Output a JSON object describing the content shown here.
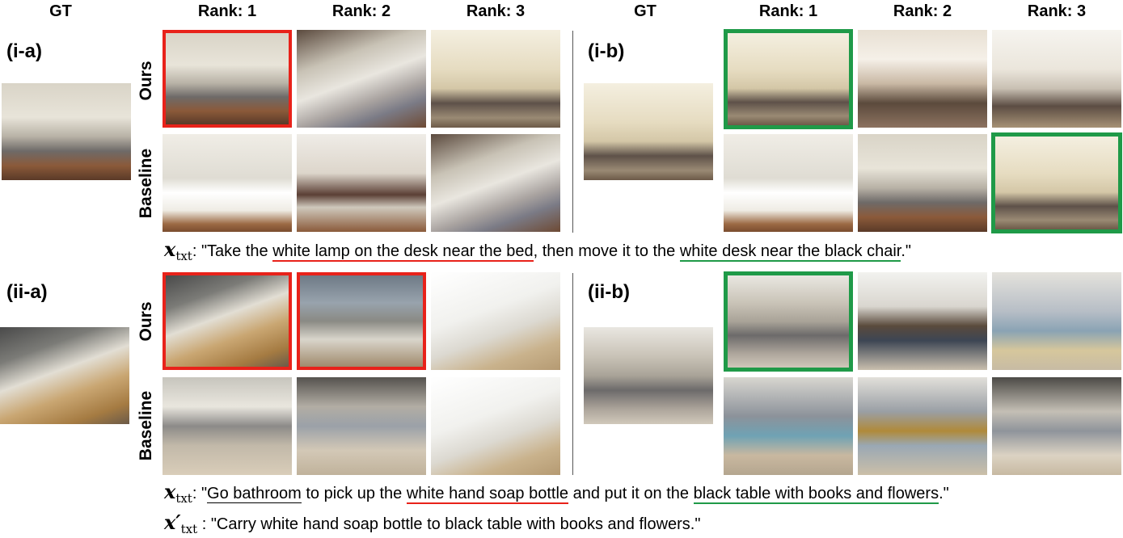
{
  "headers": {
    "gt_left": "GT",
    "rank1_left": "Rank: 1",
    "rank2_left": "Rank: 2",
    "rank3_left": "Rank: 3",
    "gt_right": "GT",
    "rank1_right": "Rank: 1",
    "rank2_right": "Rank: 2",
    "rank3_right": "Rank: 3"
  },
  "panels": {
    "ia": "(i-a)",
    "ib": "(i-b)",
    "iia": "(ii-a)",
    "iib": "(ii-b)"
  },
  "row_labels": {
    "ours": "Ours",
    "baseline": "Baseline"
  },
  "highlight_colors": {
    "wrong": "#e8221a",
    "correct": "#1f9a48"
  },
  "caption1": {
    "symbol": "x",
    "subscript": "txt",
    "prefix": ": \"Take the ",
    "red_phrase": "white lamp on the desk near the bed",
    "middle": ", then move it to the ",
    "green_phrase": "white desk near the black chair",
    "suffix": ".\""
  },
  "caption2": {
    "symbol": "x",
    "subscript": "txt",
    "prefix": ": \"",
    "black_phrase": "Go bathroom",
    "part1": " to pick up the ",
    "red_phrase": "white hand soap bottle",
    "part2": " and put it on the ",
    "green_phrase": "black table with books and flowers",
    "suffix": ".\""
  },
  "caption3": {
    "symbol": "x′",
    "subscript": "txt",
    "text": " : \"Carry white hand soap bottle to black table with books and flowers.\""
  }
}
